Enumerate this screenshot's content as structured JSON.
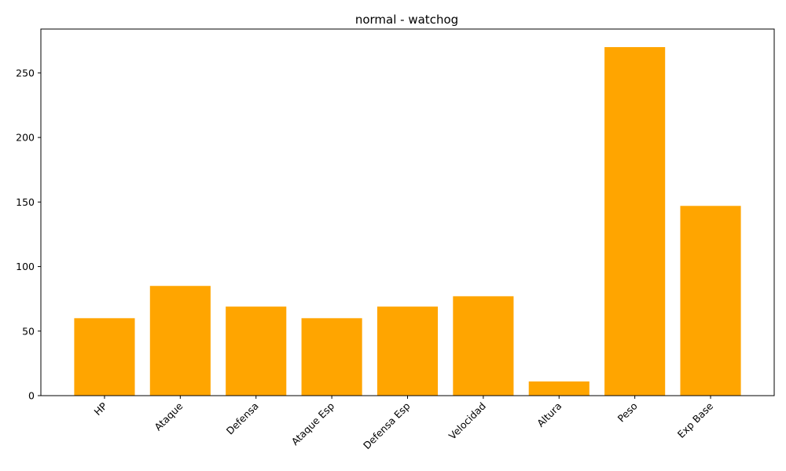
{
  "chart_data": {
    "type": "bar",
    "title": "normal - watchog",
    "xlabel": "",
    "ylabel": "",
    "categories": [
      "HP",
      "Ataque",
      "Defensa",
      "Ataque Esp",
      "Defensa Esp",
      "Velocidad",
      "Altura",
      "Peso",
      "Exp Base"
    ],
    "values": [
      60,
      85,
      69,
      60,
      69,
      77,
      11,
      270,
      147
    ],
    "ylim": [
      0,
      284
    ],
    "yticks": [
      0,
      50,
      100,
      150,
      200,
      250
    ],
    "bar_color": "#FFA500",
    "grid": false,
    "legend": "none"
  }
}
